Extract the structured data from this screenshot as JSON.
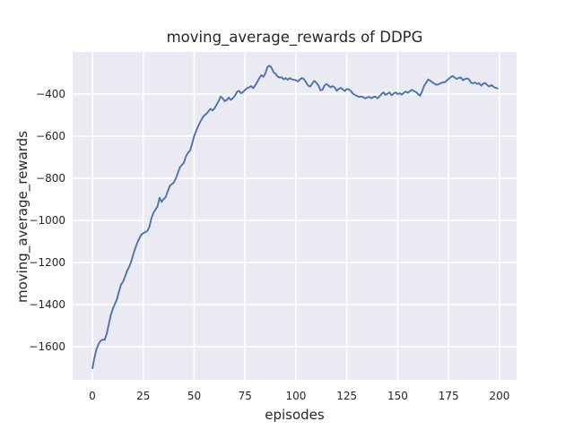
{
  "figure": {
    "background": "#ffffff",
    "text_color": "#262626"
  },
  "chart_data": {
    "type": "line",
    "title": "moving_average_rewards of DDPG",
    "xlabel": "episodes",
    "ylabel": "moving_average_rewards",
    "plot_bg": "#eaeaf2",
    "grid": true,
    "grid_color": "#ffffff",
    "legend": false,
    "xlim": [
      -9.7,
      208.4
    ],
    "ylim": [
      -1757,
      -200
    ],
    "xticks": [
      0,
      25,
      50,
      75,
      100,
      125,
      150,
      175,
      200
    ],
    "yticks": [
      -400,
      -600,
      -800,
      -1000,
      -1200,
      -1400,
      -1600
    ],
    "x_start": 0,
    "x_step": 1,
    "series": [
      {
        "name": "moving_average_rewards",
        "color": "#4c72b0",
        "y": [
          -1702,
          -1652,
          -1612,
          -1588,
          -1572,
          -1566,
          -1568,
          -1540,
          -1496,
          -1452,
          -1421,
          -1398,
          -1376,
          -1340,
          -1306,
          -1292,
          -1268,
          -1240,
          -1222,
          -1198,
          -1164,
          -1134,
          -1108,
          -1086,
          -1068,
          -1060,
          -1056,
          -1050,
          -1030,
          -990,
          -964,
          -948,
          -934,
          -892,
          -912,
          -898,
          -890,
          -862,
          -836,
          -828,
          -820,
          -800,
          -775,
          -748,
          -736,
          -726,
          -695,
          -678,
          -668,
          -636,
          -600,
          -574,
          -552,
          -532,
          -514,
          -502,
          -494,
          -482,
          -470,
          -478,
          -468,
          -450,
          -434,
          -412,
          -420,
          -434,
          -428,
          -416,
          -428,
          -420,
          -408,
          -390,
          -384,
          -396,
          -390,
          -381,
          -372,
          -368,
          -362,
          -372,
          -358,
          -342,
          -324,
          -310,
          -318,
          -302,
          -272,
          -265,
          -274,
          -296,
          -304,
          -316,
          -322,
          -320,
          -330,
          -324,
          -332,
          -324,
          -330,
          -332,
          -334,
          -340,
          -330,
          -324,
          -330,
          -345,
          -360,
          -364,
          -350,
          -338,
          -346,
          -358,
          -382,
          -380,
          -360,
          -352,
          -360,
          -368,
          -362,
          -368,
          -384,
          -376,
          -370,
          -378,
          -386,
          -376,
          -378,
          -386,
          -398,
          -404,
          -409,
          -413,
          -412,
          -414,
          -421,
          -416,
          -413,
          -420,
          -414,
          -412,
          -420,
          -412,
          -400,
          -392,
          -404,
          -398,
          -392,
          -406,
          -398,
          -392,
          -400,
          -396,
          -403,
          -394,
          -388,
          -394,
          -386,
          -380,
          -386,
          -390,
          -400,
          -408,
          -386,
          -360,
          -346,
          -330,
          -337,
          -344,
          -350,
          -356,
          -354,
          -349,
          -345,
          -344,
          -337,
          -328,
          -320,
          -314,
          -322,
          -328,
          -323,
          -321,
          -334,
          -329,
          -325,
          -330,
          -346,
          -349,
          -345,
          -352,
          -348,
          -360,
          -350,
          -347,
          -358,
          -364,
          -357,
          -365,
          -370,
          -373
        ]
      }
    ]
  }
}
